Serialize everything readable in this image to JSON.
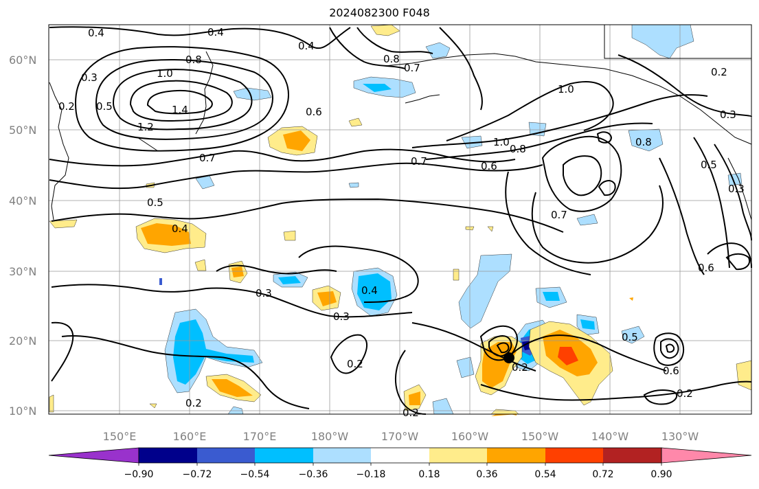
{
  "title": "2024082300 F048",
  "lat_labels": [
    "60°N",
    "50°N",
    "40°N",
    "30°N",
    "20°N",
    "10°N"
  ],
  "lon_labels": [
    "150°E",
    "160°E",
    "170°E",
    "180°W",
    "170°W",
    "160°W",
    "150°W",
    "140°W",
    "130°W"
  ],
  "contour_labels": [
    "0.4",
    "0.4",
    "0.4",
    "0.8",
    "0.8",
    "0.7",
    "0.3",
    "0.2",
    "1.0",
    "1.4",
    "1.2",
    "0.5",
    "0.6",
    "1.0",
    "0.7",
    "0.7",
    "0.6",
    "1.0",
    "0.8",
    "0.3",
    "0.2",
    "0.8",
    "0.5",
    "0.3",
    "0.5",
    "0.4",
    "0.3",
    "0.4",
    "0.3",
    "0.2",
    "0.2",
    "0.2",
    "0.2",
    "0.6",
    "0.7",
    "0.5",
    "0.6",
    "0.2"
  ],
  "colorbar": {
    "ticks": [
      "−0.90",
      "−0.72",
      "−0.54",
      "−0.36",
      "−0.18",
      "0.18",
      "0.36",
      "0.54",
      "0.72",
      "0.90"
    ],
    "colors": [
      "#9932cc",
      "#00008b",
      "#3a5bd0",
      "#00bfff",
      "#addfff",
      "#ffffff",
      "#ffec8b",
      "#ffa500",
      "#ff4000",
      "#b22222",
      "#ff88aa"
    ]
  }
}
